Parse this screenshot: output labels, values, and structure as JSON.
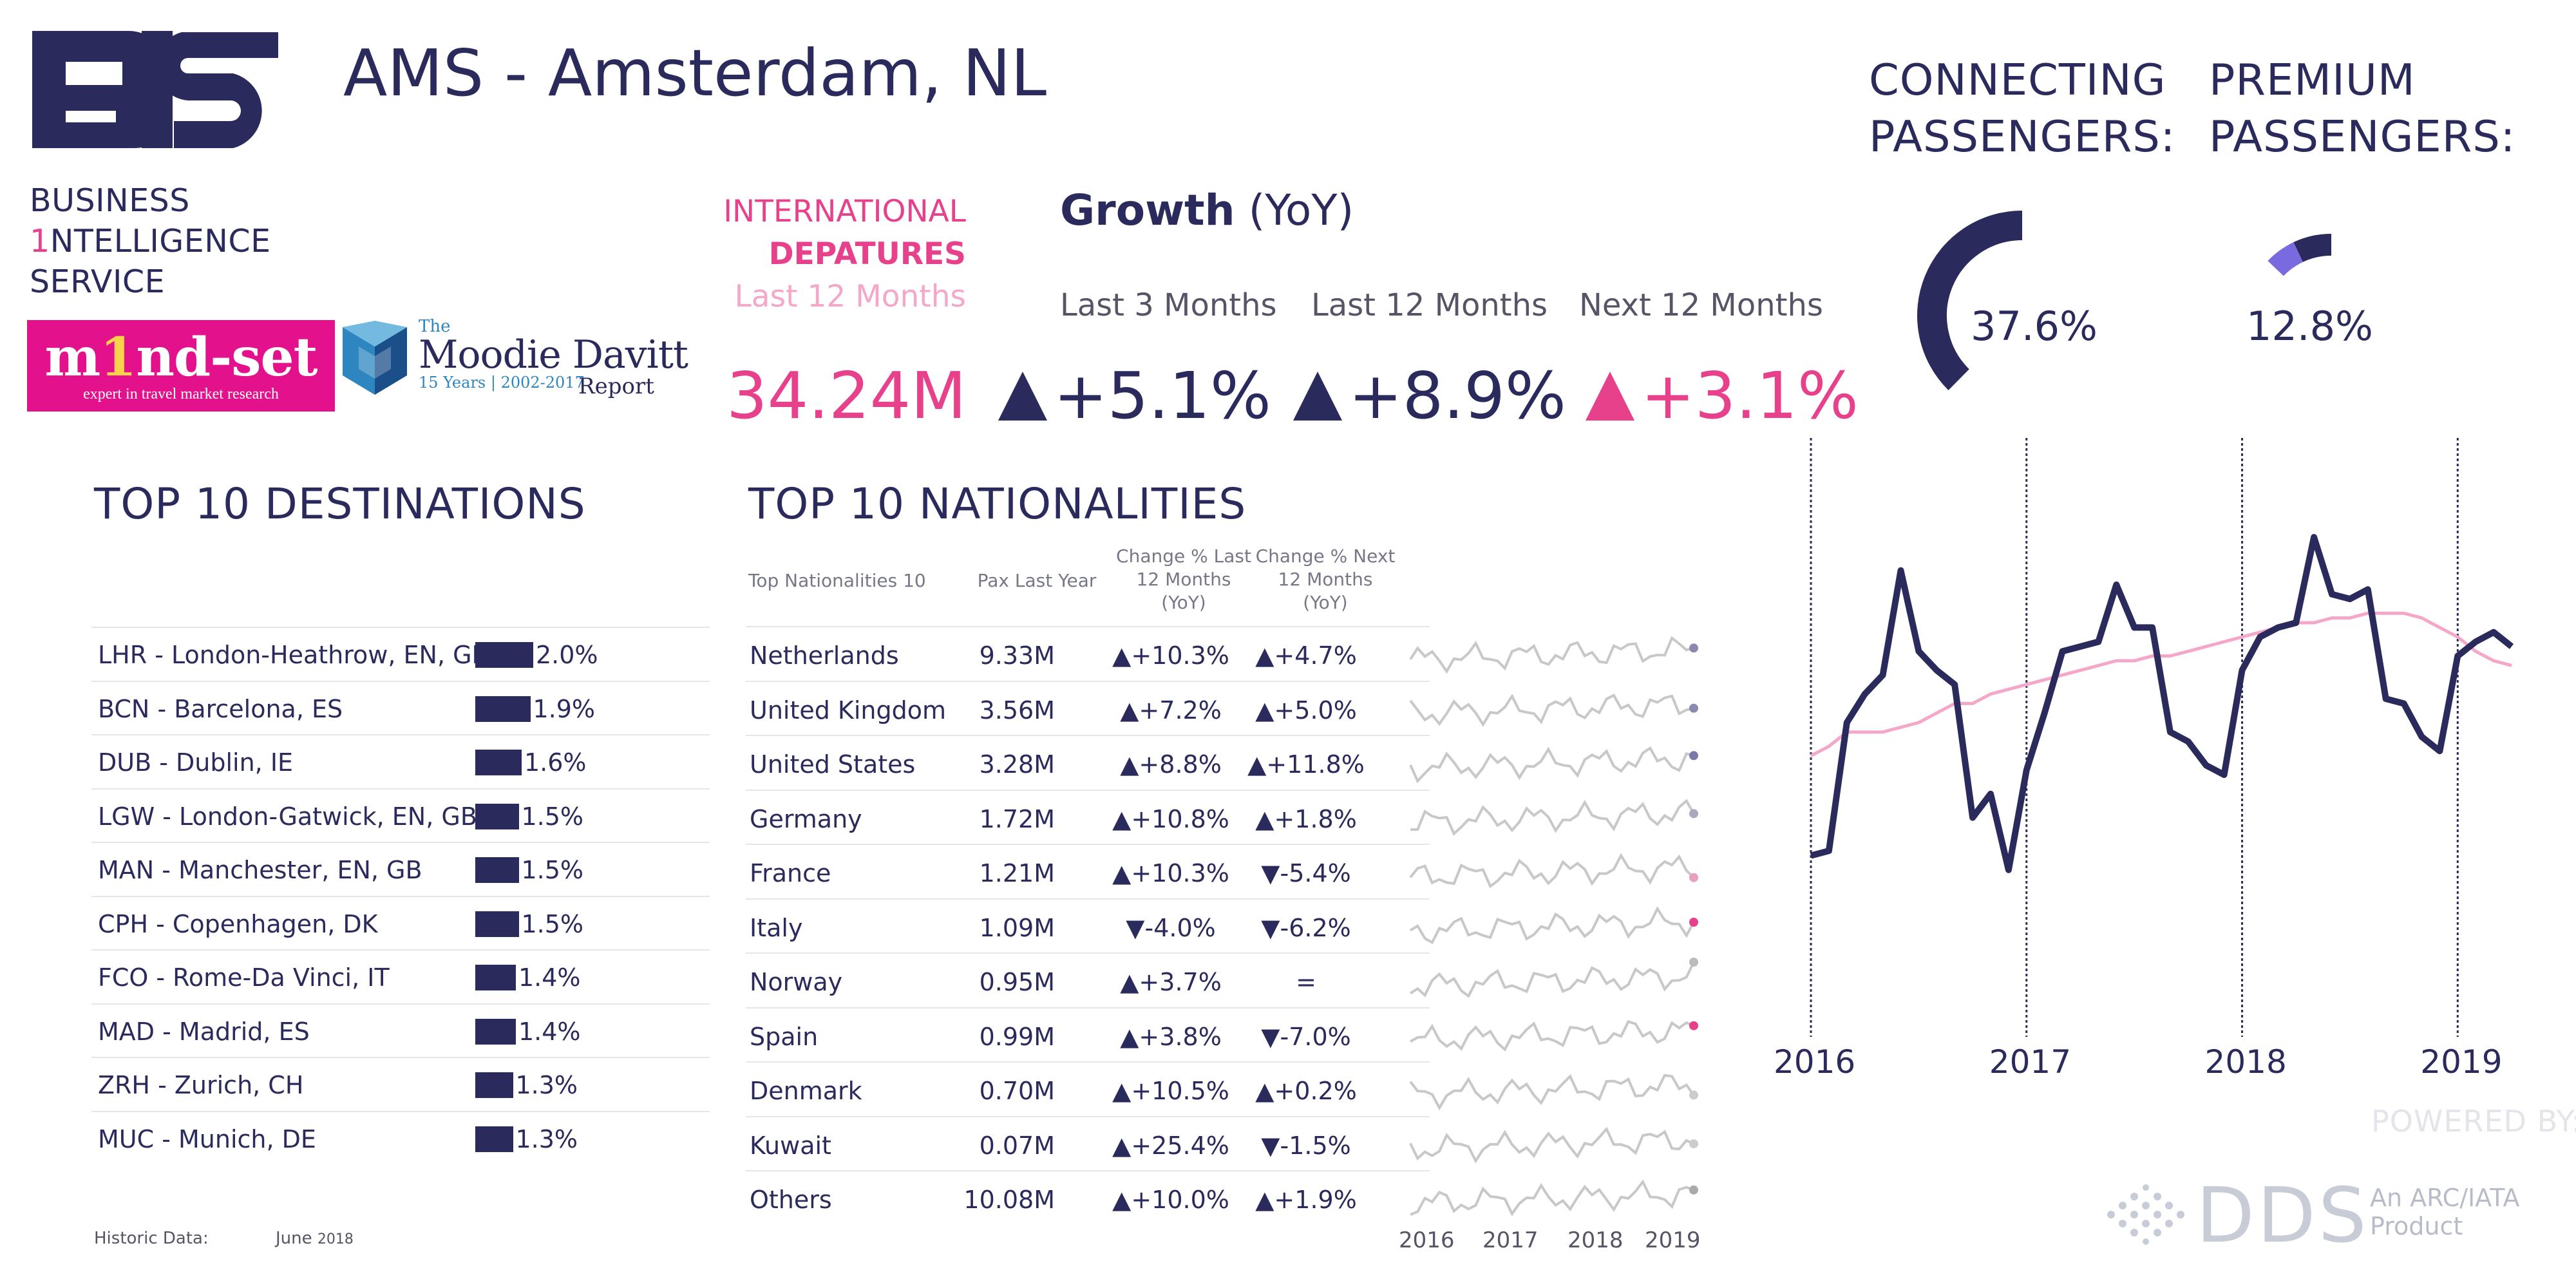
{
  "brand": {
    "logo": "BIS",
    "line1": "BUSINESS",
    "line2_accent": "1",
    "line2": "NTELLIGENCE",
    "line3": "SERVICE",
    "mindset_word_pre": "m",
    "mindset_word_accent": "1",
    "mindset_word_post": "nd-set",
    "mindset_tagline": "expert in travel market research",
    "moodie_the": "The",
    "moodie_name": "Moodie Davitt",
    "moodie_years": "15 Years | 2002-2017",
    "moodie_report": "Report"
  },
  "header": {
    "title": "AMS - Amsterdam, NL",
    "intl_label": "INTERNATIONAL",
    "intl_bold": "DEPATURES",
    "intl_period": "Last 12 Months",
    "growth_label": "Growth",
    "growth_unit": "(YoY)"
  },
  "kpis": {
    "total_pax": "34.24M",
    "periods": [
      {
        "label": "Last 3 Months",
        "value": "+5.1%"
      },
      {
        "label": "Last 12 Months",
        "value": "+8.9%"
      },
      {
        "label": "Next 12 Months",
        "value": "+3.1%"
      }
    ]
  },
  "connecting": {
    "label1": "CONNECTING",
    "label2": "PASSENGERS:",
    "value": "37.6%",
    "fraction": 0.376
  },
  "premium": {
    "label1": "PREMIUM",
    "label2": "PASSENGERS:",
    "value": "12.8%",
    "fraction": 0.128
  },
  "colors": {
    "navy": "#2b2a5c",
    "pink": "#e8418c",
    "light_pink": "#f4a7c8",
    "grey_line": "#c8c8c8"
  },
  "destinations": {
    "title": "TOP 10 DESTINATIONS",
    "rows": [
      {
        "label": "LHR - London-Heathrow, EN, GB",
        "pct": "2.0%",
        "value": 2.0
      },
      {
        "label": "BCN - Barcelona, ES",
        "pct": "1.9%",
        "value": 1.9
      },
      {
        "label": "DUB - Dublin, IE",
        "pct": "1.6%",
        "value": 1.6
      },
      {
        "label": "LGW - London-Gatwick, EN, GB",
        "pct": "1.5%",
        "value": 1.5
      },
      {
        "label": "MAN - Manchester, EN, GB",
        "pct": "1.5%",
        "value": 1.5
      },
      {
        "label": "CPH - Copenhagen, DK",
        "pct": "1.5%",
        "value": 1.5
      },
      {
        "label": "FCO - Rome-Da Vinci, IT",
        "pct": "1.4%",
        "value": 1.4
      },
      {
        "label": "MAD - Madrid, ES",
        "pct": "1.4%",
        "value": 1.4
      },
      {
        "label": "ZRH - Zurich, CH",
        "pct": "1.3%",
        "value": 1.3
      },
      {
        "label": "MUC - Munich, DE",
        "pct": "1.3%",
        "value": 1.3
      }
    ]
  },
  "nationalities": {
    "title": "TOP 10 NATIONALITIES",
    "headers": {
      "name": "Top Nationalities 10",
      "pax": "Pax Last Year",
      "ch1a": "Change % Last",
      "ch1b": "12 Months",
      "ch1c": "(YoY)",
      "ch2a": "Change % Next",
      "ch2b": "12 Months",
      "ch2c": "(YoY)"
    },
    "rows": [
      {
        "name": "Netherlands",
        "pax": "9.33M",
        "ch1": "+10.3%",
        "d1": "up",
        "ch2": "+4.7%",
        "d2": "up"
      },
      {
        "name": "United Kingdom",
        "pax": "3.56M",
        "ch1": "+7.2%",
        "d1": "up",
        "ch2": "+5.0%",
        "d2": "up"
      },
      {
        "name": "United States",
        "pax": "3.28M",
        "ch1": "+8.8%",
        "d1": "up",
        "ch2": "+11.8%",
        "d2": "up"
      },
      {
        "name": "Germany",
        "pax": "1.72M",
        "ch1": "+10.8%",
        "d1": "up",
        "ch2": "+1.8%",
        "d2": "up"
      },
      {
        "name": "France",
        "pax": "1.21M",
        "ch1": "+10.3%",
        "d1": "up",
        "ch2": "-5.4%",
        "d2": "down"
      },
      {
        "name": "Italy",
        "pax": "1.09M",
        "ch1": "-4.0%",
        "d1": "down",
        "ch2": "-6.2%",
        "d2": "down"
      },
      {
        "name": "Norway",
        "pax": "0.95M",
        "ch1": "+3.7%",
        "d1": "up",
        "ch2": "=",
        "d2": "none"
      },
      {
        "name": "Spain",
        "pax": "0.99M",
        "ch1": "+3.8%",
        "d1": "up",
        "ch2": "-7.0%",
        "d2": "down"
      },
      {
        "name": "Denmark",
        "pax": "0.70M",
        "ch1": "+10.5%",
        "d1": "up",
        "ch2": "+0.2%",
        "d2": "up"
      },
      {
        "name": "Kuwait",
        "pax": "0.07M",
        "ch1": "+25.4%",
        "d1": "up",
        "ch2": "-1.5%",
        "d2": "down"
      },
      {
        "name": "Others",
        "pax": "10.08M",
        "ch1": "+10.0%",
        "d1": "up",
        "ch2": "+1.9%",
        "d2": "up"
      }
    ],
    "spark_years": [
      "2016",
      "2017",
      "2018",
      "2019"
    ],
    "spark_dot_colors": [
      "#8a89b0",
      "#8a89b0",
      "#7a79a8",
      "#aaaabb",
      "#e8a0c0",
      "#e8418c",
      "#bbbbbb",
      "#e8418c",
      "#cccccc",
      "#cccccc",
      "#aaaaaa"
    ]
  },
  "chart_data": {
    "type": "line",
    "x_ticks": [
      "2016",
      "2017",
      "2018",
      "2019"
    ],
    "series": [
      {
        "color": "#2b2a5c",
        "values": [
          30,
          31,
          58,
          64,
          68,
          90,
          73,
          69,
          66,
          38,
          43,
          27,
          48,
          60,
          73,
          74,
          75,
          87,
          78,
          78,
          56,
          54,
          49,
          47,
          69,
          76,
          78,
          79,
          97,
          85,
          84,
          86,
          63,
          62,
          55,
          52,
          72,
          75,
          77,
          74
        ]
      },
      {
        "color": "#f4a7c8",
        "values": [
          51,
          53,
          56,
          56,
          56,
          57,
          58,
          60,
          62,
          62,
          64,
          65,
          66,
          67,
          68,
          69,
          70,
          71,
          71,
          72,
          72,
          73,
          74,
          75,
          76,
          77,
          78,
          79,
          79,
          80,
          80,
          81,
          81,
          81,
          80,
          78,
          76,
          73,
          71,
          70
        ]
      }
    ]
  },
  "footer": {
    "historic_label": "Historic Data:",
    "historic_month": "June",
    "historic_year": "2018",
    "powered": "POWERED BY:",
    "dds": "DDS",
    "arc1": "An ARC/IATA",
    "arc2": "Product"
  }
}
